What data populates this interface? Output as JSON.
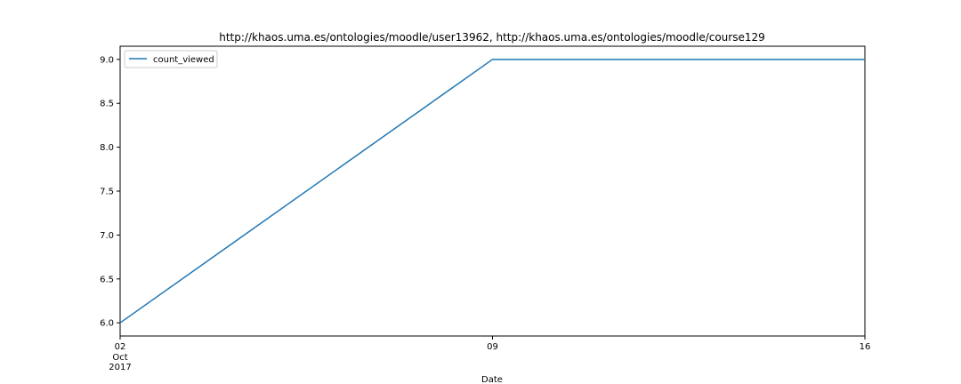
{
  "chart_data": {
    "type": "line",
    "title": "http://khaos.uma.es/ontologies/moodle/user13962, http://khaos.uma.es/ontologies/moodle/course129",
    "xlabel": "Date",
    "ylabel": "",
    "x": [
      "2017-10-02",
      "2017-10-09",
      "2017-10-16"
    ],
    "x_tick_labels": [
      "02",
      "09",
      "16"
    ],
    "x_tick_sublabels": [
      "Oct",
      "2017"
    ],
    "ylim": [
      5.85,
      9.15
    ],
    "y_ticks": [
      6.0,
      6.5,
      7.0,
      7.5,
      8.0,
      8.5,
      9.0
    ],
    "y_tick_labels": [
      "6.0",
      "6.5",
      "7.0",
      "7.5",
      "8.0",
      "8.5",
      "9.0"
    ],
    "grid": false,
    "legend_position": "top-left",
    "series": [
      {
        "name": "count_viewed",
        "color": "#1f77b4",
        "values": [
          6,
          9,
          9
        ]
      }
    ]
  }
}
